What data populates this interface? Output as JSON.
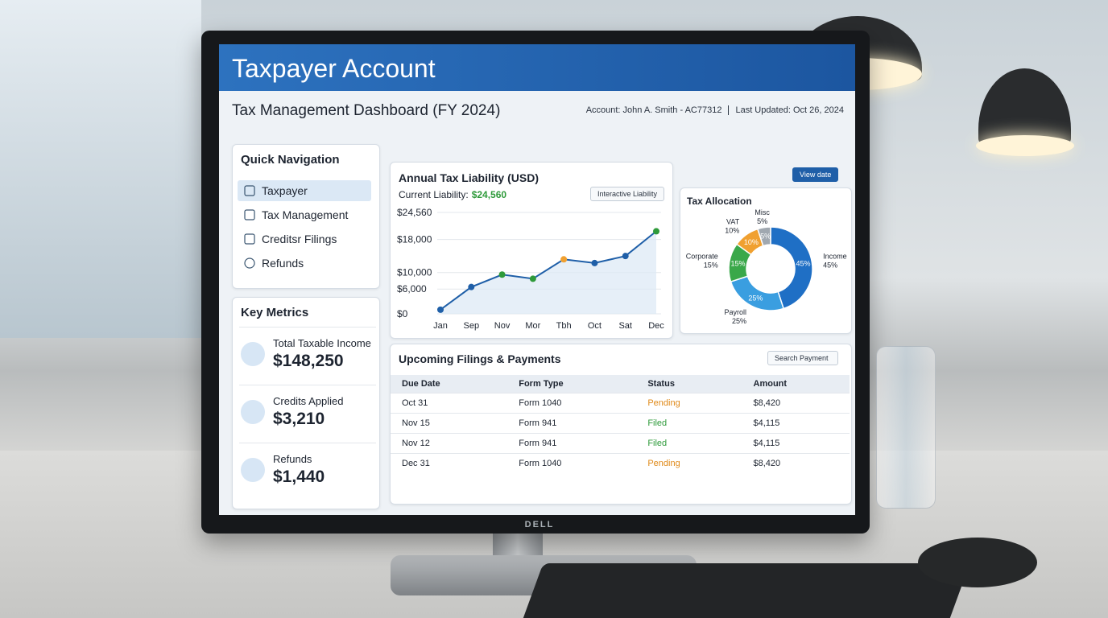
{
  "header": {
    "title": "Taxpayer Account"
  },
  "dashboard": {
    "title": "Tax Management Dashboard (FY 2024)",
    "account": "Account: John A. Smith - AC77312",
    "last_updated": "Last Updated: Oct 26, 2024",
    "view_button": "View date"
  },
  "navigation": {
    "title": "Quick Navigation",
    "items": [
      "Taxpayer",
      "Tax Management",
      "Creditsr Filings",
      "Refunds"
    ],
    "active": 0
  },
  "key_metrics": {
    "title": "Key Metrics",
    "items": [
      {
        "label": "Total Taxable Income",
        "value": "$148,250"
      },
      {
        "label": "Credits Applied",
        "value": "$3,210"
      },
      {
        "label": "Refunds",
        "value": "$1,440"
      }
    ]
  },
  "liability_chart": {
    "type": "line",
    "title": "Annual Tax Liability (USD)",
    "current_label": "Current Liability:",
    "current_value": "$24,560",
    "dropdown": "Interactive Liability",
    "categories": [
      "Jan",
      "Sep",
      "Nov",
      "Mor",
      "Tbh",
      "Oct",
      "Sat",
      "Dec"
    ],
    "values": [
      1000,
      6500,
      9500,
      8500,
      13200,
      12300,
      14000,
      20000
    ],
    "color": "#1f5fa8",
    "marker_colors": [
      "#1f5fa8",
      "#1f5fa8",
      "#2e9a3a",
      "#2e9a3a",
      "#f0a030",
      "#1f5fa8",
      "#1f5fa8",
      "#2e9a3a"
    ],
    "ylim": [
      0,
      24560
    ],
    "yticks": [
      {
        "value": 0,
        "label": "$0"
      },
      {
        "value": 6000,
        "label": "$6,000"
      },
      {
        "value": 10000,
        "label": "$10,000"
      },
      {
        "value": 18000,
        "label": "$18,000"
      },
      {
        "value": 24560,
        "label": "$24,560"
      }
    ],
    "grid": true
  },
  "allocation_chart": {
    "type": "pie",
    "title": "Tax Allocation",
    "donut": true,
    "categories": [
      "Income",
      "Payroll",
      "Corporate",
      "VAT",
      "Misc"
    ],
    "values": [
      45,
      25,
      15,
      10,
      5
    ],
    "value_labels": [
      "45%",
      "25%",
      "15%",
      "10%",
      "5%"
    ],
    "colors": [
      "#1f6fc5",
      "#3a9ee0",
      "#3aa84a",
      "#f0a030",
      "#a0a8b0"
    ]
  },
  "filings": {
    "title": "Upcoming Filings & Payments",
    "search": "Search Payment",
    "columns": [
      "Due Date",
      "Form Type",
      "Status",
      "Amount"
    ],
    "rows": [
      [
        "Oct 31",
        "Form 1040",
        "Pending",
        "$8,420"
      ],
      [
        "Nov 15",
        "Form 941",
        "Filed",
        "$4,115"
      ],
      [
        "Nov 12",
        "Form 941",
        "Filed",
        "$4,115"
      ],
      [
        "Dec 31",
        "Form 1040",
        "Pending",
        "$8,420"
      ]
    ],
    "status_colors": {
      "Pending": "#e08a1a",
      "Filed": "#2e9a3a"
    }
  },
  "monitor": {
    "brand": "DELL"
  }
}
